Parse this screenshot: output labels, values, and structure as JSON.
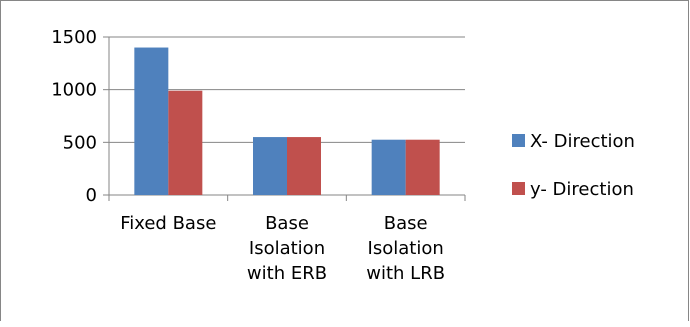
{
  "chart_data": {
    "type": "bar",
    "categories": [
      [
        "Fixed Base"
      ],
      [
        "Base",
        "Isolation",
        "with ERB"
      ],
      [
        "Base",
        "Isolation",
        "with LRB"
      ]
    ],
    "series": [
      {
        "name": "X- Direction",
        "color": "#4F81BD",
        "values": [
          1400,
          550,
          525
        ]
      },
      {
        "name": "y- Direction",
        "color": "#C0504D",
        "values": [
          990,
          550,
          525
        ]
      }
    ],
    "y_ticks": [
      "0",
      "500",
      "1000",
      "1500"
    ],
    "ylim": [
      0,
      1500
    ],
    "grid": true,
    "legend_position": "right"
  }
}
